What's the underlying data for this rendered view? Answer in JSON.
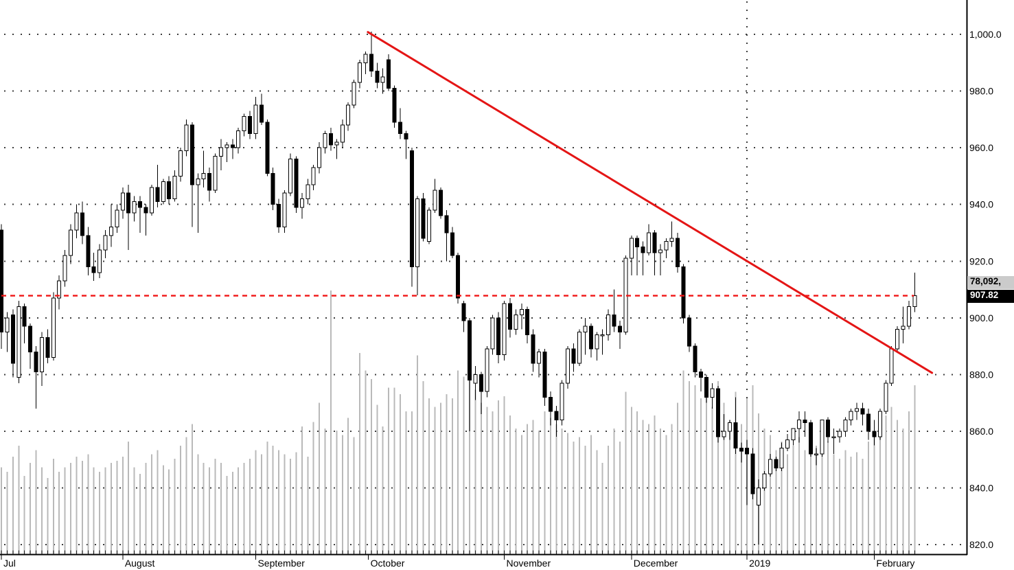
{
  "chart_data": {
    "type": "candlestick",
    "title": "",
    "y_axis": {
      "side": "right",
      "ticks": [
        {
          "label": "1,000.0",
          "value": 1000
        },
        {
          "label": "980.0",
          "value": 980
        },
        {
          "label": "960.0",
          "value": 960
        },
        {
          "label": "940.0",
          "value": 940
        },
        {
          "label": "920.0",
          "value": 920
        },
        {
          "label": "900.0",
          "value": 900
        },
        {
          "label": "880.0",
          "value": 880
        },
        {
          "label": "860.0",
          "value": 860
        },
        {
          "label": "840.0",
          "value": 840
        },
        {
          "label": "820.0",
          "value": 820
        }
      ]
    },
    "x_axis": {
      "ticks": [
        {
          "label": "Jul",
          "bar": 0
        },
        {
          "label": "August",
          "bar": 21
        },
        {
          "label": "September",
          "bar": 44
        },
        {
          "label": "October",
          "bar": 63.5
        },
        {
          "label": "November",
          "bar": 87
        },
        {
          "label": "December",
          "bar": 109
        },
        {
          "label": "2019",
          "bar": 129
        },
        {
          "label": "February",
          "bar": 151
        }
      ]
    },
    "badges": {
      "volume_readout": "78,092,",
      "last_price": "907.82"
    },
    "last_price_value": 907.82,
    "vertical_line_bar": 129,
    "trendline": {
      "from_bar": 63.4,
      "from_price": 1000.8,
      "to_bar": 161,
      "to_price": 880.6
    },
    "colors": {
      "up_candle": "#ffffff",
      "down_candle": "#000000",
      "volume_bar": "#b9b9b9",
      "trend_red": "#e41515",
      "dashed_red": "#f01414",
      "badge_volume_bg": "#cbcbcb",
      "badge_price_bg": "#000000",
      "grid_dot": "#3d3d3d"
    },
    "candles_format": [
      "open",
      "high",
      "low",
      "close",
      "volume_rel"
    ],
    "candles": [
      [
        931,
        933,
        889,
        895,
        40
      ],
      [
        895,
        902,
        888,
        900,
        38
      ],
      [
        901,
        903,
        879,
        884,
        45
      ],
      [
        879,
        906,
        877,
        904,
        50
      ],
      [
        904,
        905,
        891,
        897,
        36
      ],
      [
        897,
        898,
        882,
        888,
        42
      ],
      [
        888,
        890,
        868,
        881,
        48
      ],
      [
        881,
        895,
        876,
        893,
        40
      ],
      [
        893,
        896,
        884,
        886,
        35
      ],
      [
        886,
        909,
        885,
        907,
        44
      ],
      [
        907,
        915,
        903,
        913,
        38
      ],
      [
        913,
        924,
        911,
        922,
        40
      ],
      [
        922,
        933,
        919,
        931,
        42
      ],
      [
        931,
        940,
        928,
        937,
        45
      ],
      [
        937,
        941,
        926,
        929,
        43
      ],
      [
        929,
        932,
        915,
        918,
        46
      ],
      [
        918,
        923,
        913,
        916,
        40
      ],
      [
        916,
        926,
        914,
        924,
        38
      ],
      [
        924,
        931,
        921,
        929,
        40
      ],
      [
        929,
        940,
        925,
        932,
        42
      ],
      [
        932,
        940,
        930,
        938,
        43
      ],
      [
        938,
        946,
        935,
        944,
        45
      ],
      [
        944,
        947,
        924,
        937,
        52
      ],
      [
        937,
        943,
        934,
        941,
        40
      ],
      [
        941,
        943,
        930,
        939,
        37
      ],
      [
        939,
        940,
        929,
        937,
        42
      ],
      [
        937,
        947,
        936,
        946,
        46
      ],
      [
        946,
        954,
        939,
        941,
        48
      ],
      [
        941,
        949,
        940,
        948,
        41
      ],
      [
        948,
        950,
        940,
        942,
        39
      ],
      [
        942,
        952,
        941,
        950,
        44
      ],
      [
        950,
        960,
        948,
        959,
        50
      ],
      [
        959,
        970,
        957,
        968,
        54
      ],
      [
        968,
        969,
        932,
        947,
        60
      ],
      [
        947,
        951,
        930,
        949,
        46
      ],
      [
        949,
        959,
        946,
        951,
        42
      ],
      [
        951,
        953,
        941,
        945,
        40
      ],
      [
        945,
        958,
        944,
        957,
        44
      ],
      [
        957,
        963,
        952,
        960,
        42
      ],
      [
        960,
        962,
        955,
        961,
        36
      ],
      [
        961,
        963,
        956,
        960,
        38
      ],
      [
        960,
        967,
        958,
        966,
        40
      ],
      [
        966,
        972,
        964,
        971,
        42
      ],
      [
        971,
        973,
        963,
        965,
        44
      ],
      [
        965,
        978,
        963,
        975,
        48
      ],
      [
        975,
        979,
        968,
        969,
        46
      ],
      [
        969,
        970,
        950,
        951,
        52
      ],
      [
        951,
        953,
        938,
        940,
        50
      ],
      [
        940,
        942,
        930,
        932,
        48
      ],
      [
        932,
        945,
        930,
        944,
        46
      ],
      [
        944,
        958,
        943,
        956,
        44
      ],
      [
        956,
        957,
        937,
        939,
        47
      ],
      [
        939,
        944,
        935,
        942,
        59
      ],
      [
        942,
        949,
        940,
        947,
        45
      ],
      [
        947,
        954,
        945,
        953,
        61
      ],
      [
        953,
        962,
        951,
        960,
        70
      ],
      [
        960,
        966,
        958,
        965,
        58
      ],
      [
        965,
        967,
        959,
        961,
        122
      ],
      [
        961,
        963,
        956,
        962,
        57
      ],
      [
        962,
        970,
        960,
        968,
        55
      ],
      [
        968,
        976,
        966,
        975,
        63
      ],
      [
        975,
        984,
        974,
        983,
        54
      ],
      [
        983,
        991,
        981,
        990,
        93
      ],
      [
        990,
        994,
        986,
        993,
        85
      ],
      [
        993,
        1001,
        985,
        987,
        81
      ],
      [
        987,
        990,
        981,
        983,
        69
      ],
      [
        983,
        988,
        979,
        985,
        59
      ],
      [
        991,
        993,
        980,
        981,
        77
      ],
      [
        981,
        982,
        967,
        969,
        77
      ],
      [
        969,
        974,
        963,
        965,
        74
      ],
      [
        965,
        966,
        956,
        963,
        66
      ],
      [
        959,
        960,
        911,
        918,
        66
      ],
      [
        918,
        943,
        908,
        942,
        92
      ],
      [
        942,
        944,
        927,
        928,
        80
      ],
      [
        927,
        939,
        926,
        938,
        72
      ],
      [
        938,
        949,
        937,
        945,
        68
      ],
      [
        945,
        946,
        935,
        936,
        70
      ],
      [
        936,
        938,
        920,
        930,
        74
      ],
      [
        930,
        932,
        921,
        922,
        72
      ],
      [
        922,
        923,
        905,
        907,
        85
      ],
      [
        905,
        906,
        895,
        899,
        82
      ],
      [
        899,
        900,
        860,
        878,
        98
      ],
      [
        877,
        883,
        871,
        880,
        76
      ],
      [
        880,
        881,
        866,
        874,
        70
      ],
      [
        874,
        890,
        872,
        889,
        68
      ],
      [
        889,
        901,
        887,
        900,
        66
      ],
      [
        900,
        902,
        884,
        887,
        71
      ],
      [
        887,
        906,
        885,
        905,
        73
      ],
      [
        905,
        907,
        893,
        896,
        64
      ],
      [
        896,
        903,
        894,
        901,
        58
      ],
      [
        901,
        905,
        896,
        903,
        55
      ],
      [
        903,
        904,
        891,
        894,
        60
      ],
      [
        894,
        896,
        881,
        884,
        62
      ],
      [
        884,
        889,
        879,
        888,
        57
      ],
      [
        888,
        889,
        869,
        872,
        66
      ],
      [
        872,
        874,
        862,
        867,
        63
      ],
      [
        867,
        869,
        858,
        864,
        60
      ],
      [
        864,
        878,
        862,
        877,
        58
      ],
      [
        877,
        890,
        875,
        889,
        56
      ],
      [
        889,
        891,
        881,
        884,
        52
      ],
      [
        884,
        896,
        883,
        895,
        54
      ],
      [
        895,
        900,
        887,
        897,
        50
      ],
      [
        897,
        898,
        886,
        889,
        55
      ],
      [
        889,
        895,
        885,
        894,
        48
      ],
      [
        894,
        896,
        887,
        894,
        42
      ],
      [
        894,
        903,
        892,
        901,
        50
      ],
      [
        901,
        910,
        895,
        897,
        58
      ],
      [
        897,
        899,
        889,
        895,
        52
      ],
      [
        895,
        922,
        894,
        921,
        75
      ],
      [
        921,
        929,
        915,
        928,
        68
      ],
      [
        928,
        929,
        915,
        925,
        66
      ],
      [
        925,
        927,
        915,
        923,
        62
      ],
      [
        923,
        933,
        922,
        930,
        60
      ],
      [
        930,
        931,
        915,
        923,
        64
      ],
      [
        923,
        926,
        915,
        924,
        58
      ],
      [
        924,
        928,
        921,
        927,
        55
      ],
      [
        927,
        934,
        925,
        928,
        60
      ],
      [
        928,
        930,
        916,
        918,
        70
      ],
      [
        918,
        919,
        898,
        900,
        85
      ],
      [
        900,
        901,
        888,
        890,
        80
      ],
      [
        890,
        891,
        879,
        881,
        78
      ],
      [
        881,
        882,
        874,
        879,
        72
      ],
      [
        879,
        880,
        870,
        872,
        74
      ],
      [
        872,
        877,
        868,
        875,
        68
      ],
      [
        875,
        876,
        856,
        858,
        80
      ],
      [
        858,
        866,
        857,
        860,
        70
      ],
      [
        860,
        864,
        857,
        863,
        62
      ],
      [
        863,
        872,
        852,
        854,
        75
      ],
      [
        854,
        856,
        849,
        853,
        60
      ],
      [
        854,
        857,
        834,
        852,
        72
      ],
      [
        852,
        854,
        836,
        838,
        78
      ],
      [
        834,
        843,
        820,
        840,
        65
      ],
      [
        840,
        846,
        839,
        845,
        58
      ],
      [
        845,
        852,
        844,
        850,
        55
      ],
      [
        850,
        851,
        846,
        847,
        48
      ],
      [
        847,
        856,
        846,
        854,
        52
      ],
      [
        854,
        859,
        853,
        857,
        46
      ],
      [
        857,
        861,
        855,
        861,
        50
      ],
      [
        861,
        867,
        856,
        864,
        54
      ],
      [
        864,
        867,
        858,
        863,
        48
      ],
      [
        863,
        864,
        851,
        852,
        56
      ],
      [
        852,
        854,
        848,
        852,
        50
      ],
      [
        852,
        864,
        851,
        864,
        55
      ],
      [
        864,
        865,
        856,
        858,
        52
      ],
      [
        858,
        861,
        852,
        858,
        46
      ],
      [
        858,
        861,
        856,
        860,
        44
      ],
      [
        860,
        865,
        858,
        864,
        48
      ],
      [
        864,
        868,
        862,
        867,
        45
      ],
      [
        867,
        870,
        864,
        868,
        47
      ],
      [
        868,
        870,
        862,
        866,
        44
      ],
      [
        866,
        868,
        857,
        860,
        52
      ],
      [
        860,
        864,
        855,
        858,
        55
      ],
      [
        858,
        868,
        857,
        867,
        60
      ],
      [
        867,
        878,
        866,
        877,
        64
      ],
      [
        877,
        890,
        876,
        889,
        68
      ],
      [
        889,
        897,
        888,
        896,
        62
      ],
      [
        896,
        904,
        891,
        897,
        58
      ],
      [
        897,
        906,
        896,
        904,
        66
      ],
      [
        904,
        916,
        902,
        907.82,
        78
      ]
    ]
  }
}
